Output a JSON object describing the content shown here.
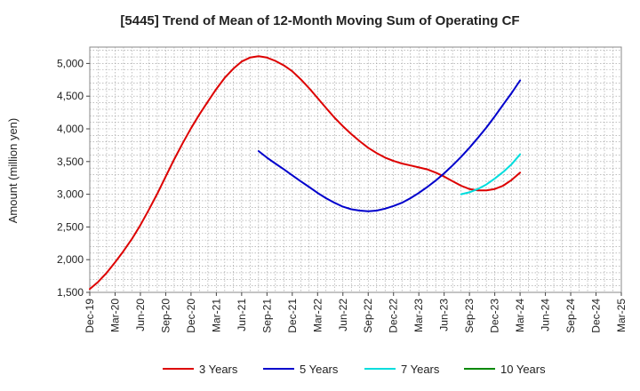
{
  "chart_data": {
    "type": "line",
    "title": "[5445]  Trend of Mean of 12-Month Moving Sum of Operating CF",
    "xlabel": "",
    "ylabel": "Amount (million yen)",
    "ylim": [
      1500,
      5250
    ],
    "yticks": [
      1500,
      2000,
      2500,
      3000,
      3500,
      4000,
      4500,
      5000
    ],
    "ytick_labels": [
      "1,500",
      "2,000",
      "2,500",
      "3,000",
      "3,500",
      "4,000",
      "4,500",
      "5,000"
    ],
    "x_categories": [
      "Dec-19",
      "Mar-20",
      "Jun-20",
      "Sep-20",
      "Dec-20",
      "Mar-21",
      "Jun-21",
      "Sep-21",
      "Dec-21",
      "Mar-22",
      "Jun-22",
      "Sep-22",
      "Dec-22",
      "Mar-23",
      "Jun-23",
      "Sep-23",
      "Dec-23",
      "Mar-24",
      "Jun-24",
      "Sep-24",
      "Dec-24",
      "Mar-25"
    ],
    "grid": true,
    "legend_position": "bottom",
    "series": [
      {
        "name": "3 Years",
        "color": "#dd0000",
        "x": [
          0,
          0.33,
          0.67,
          1,
          1.33,
          1.67,
          2,
          2.33,
          2.67,
          3,
          3.33,
          3.67,
          4,
          4.33,
          4.67,
          5,
          5.33,
          5.67,
          6,
          6.33,
          6.67,
          7,
          7.33,
          7.67,
          8,
          8.33,
          8.67,
          9,
          9.33,
          9.67,
          10,
          10.33,
          10.67,
          11,
          11.33,
          11.67,
          12,
          12.33,
          12.67,
          13,
          13.33,
          13.67,
          14,
          14.33,
          14.67,
          15,
          15.33,
          15.67,
          16,
          16.33,
          16.67,
          17
        ],
        "values": [
          1550,
          1660,
          1800,
          1960,
          2130,
          2320,
          2530,
          2760,
          3010,
          3270,
          3530,
          3780,
          4010,
          4220,
          4420,
          4610,
          4780,
          4920,
          5030,
          5090,
          5110,
          5090,
          5040,
          4970,
          4880,
          4760,
          4620,
          4470,
          4320,
          4170,
          4040,
          3920,
          3810,
          3710,
          3630,
          3560,
          3510,
          3470,
          3440,
          3410,
          3380,
          3330,
          3270,
          3200,
          3130,
          3080,
          3060,
          3060,
          3080,
          3130,
          3220,
          3330
        ]
      },
      {
        "name": "5 Years",
        "color": "#0000cc",
        "x": [
          6.67,
          7,
          7.33,
          7.67,
          8,
          8.33,
          8.67,
          9,
          9.33,
          9.67,
          10,
          10.33,
          10.67,
          11,
          11.33,
          11.67,
          12,
          12.33,
          12.67,
          13,
          13.33,
          13.67,
          14,
          14.33,
          14.67,
          15,
          15.33,
          15.67,
          16,
          16.33,
          16.67,
          17
        ],
        "values": [
          3660,
          3560,
          3470,
          3380,
          3290,
          3200,
          3110,
          3020,
          2940,
          2870,
          2810,
          2770,
          2750,
          2740,
          2750,
          2780,
          2820,
          2870,
          2940,
          3020,
          3110,
          3210,
          3320,
          3440,
          3570,
          3710,
          3860,
          4020,
          4190,
          4370,
          4550,
          4740
        ]
      },
      {
        "name": "7 Years",
        "color": "#00dddd",
        "x": [
          14.67,
          15,
          15.33,
          15.67,
          16,
          16.33,
          16.67,
          17
        ],
        "values": [
          3000,
          3030,
          3080,
          3150,
          3240,
          3340,
          3460,
          3610
        ]
      },
      {
        "name": "10 Years",
        "color": "#008800",
        "x": [],
        "values": []
      }
    ]
  }
}
